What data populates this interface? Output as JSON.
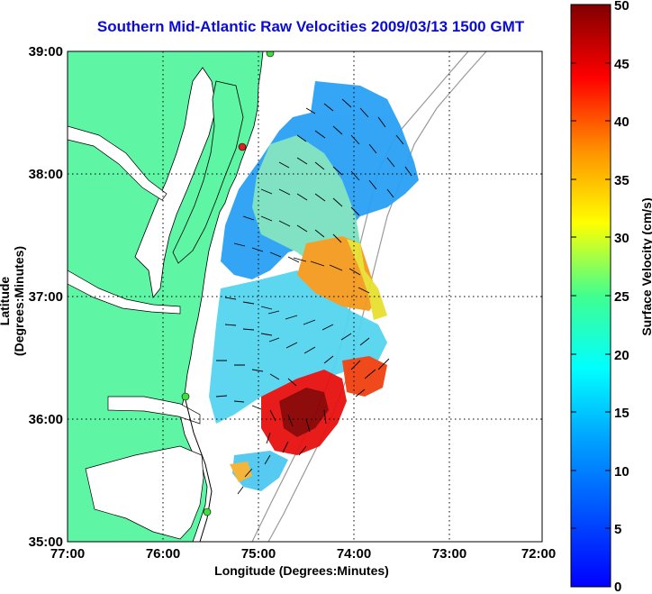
{
  "title": "Southern Mid-Atlantic Raw Velocities 2009/03/13 1500 GMT",
  "axes": {
    "xlabel": "Longitude (Degrees:Minutes)",
    "ylabel": "Latitude (Degrees:Minutes)",
    "xticks": [
      "77:00",
      "76:00",
      "75:00",
      "74:00",
      "73:00",
      "72:00"
    ],
    "yticks": [
      "39:00",
      "38:00",
      "37:00",
      "36:00",
      "35:00"
    ],
    "xlim": [
      -77,
      -72
    ],
    "ylim": [
      35,
      39
    ]
  },
  "colorbar": {
    "label": "Surface Velocity (cm/s)",
    "ticks": [
      "50",
      "45",
      "40",
      "35",
      "30",
      "25",
      "20",
      "15",
      "10",
      "5",
      "0"
    ],
    "range": [
      0,
      50
    ]
  },
  "colors": {
    "land": "#5ef5a5",
    "title": "#0b0bd6",
    "station": "#3de03d",
    "station_alt": "#e02020"
  }
}
